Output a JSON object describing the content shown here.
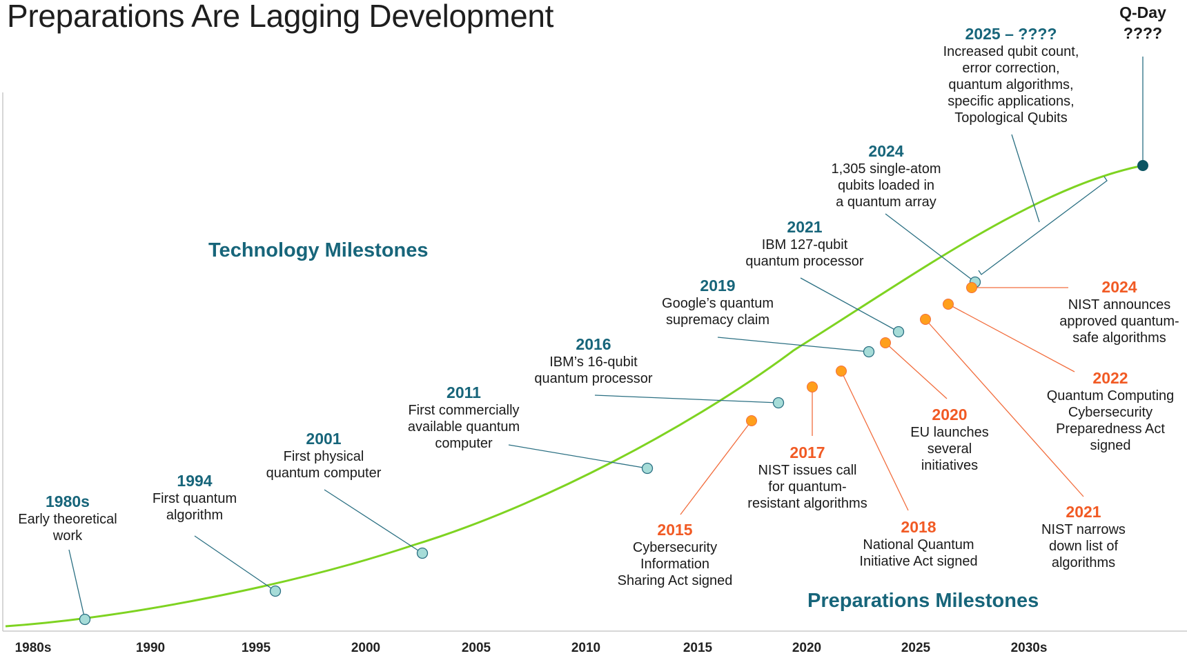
{
  "title": "Preparations Are Lagging Development",
  "colors": {
    "curve": "#7ed321",
    "tech": "#17657a",
    "prep": "#f15a24",
    "tech_marker": "#a6dcd8",
    "prep_marker": "#ff9f1c",
    "qday_marker": "#0b5563",
    "tech_leader": "#2a6f82",
    "prep_leader": "#f26d3d"
  },
  "chart_data": {
    "type": "line",
    "x_tick_labels": [
      "1980s",
      "1990",
      "1995",
      "2000",
      "2005",
      "2010",
      "2015",
      "2020",
      "2025",
      "2030s"
    ],
    "section_labels": {
      "technology": "Technology Milestones",
      "preparations": "Preparations Milestones"
    },
    "qday": {
      "label": "Q-Day",
      "year": "????"
    },
    "technology_milestones": [
      {
        "year": "1980s",
        "lines": [
          "Early theoretical",
          "work"
        ]
      },
      {
        "year": "1994",
        "lines": [
          "First quantum",
          "algorithm"
        ]
      },
      {
        "year": "2001",
        "lines": [
          "First physical",
          "quantum computer"
        ]
      },
      {
        "year": "2011",
        "lines": [
          "First commercially",
          "available quantum",
          "computer"
        ]
      },
      {
        "year": "2016",
        "lines": [
          "IBM’s 16-qubit",
          "quantum processor"
        ]
      },
      {
        "year": "2019",
        "lines": [
          "Google’s quantum",
          "supremacy claim"
        ]
      },
      {
        "year": "2021",
        "lines": [
          "IBM 127-qubit",
          "quantum processor"
        ]
      },
      {
        "year": "2024",
        "lines": [
          "1,305 single-atom",
          "qubits loaded in",
          "a quantum array"
        ]
      },
      {
        "year": "2025 – ????",
        "lines": [
          "Increased qubit count,",
          "error correction,",
          "quantum algorithms,",
          "specific applications,",
          "Topological Qubits"
        ]
      }
    ],
    "preparation_milestones": [
      {
        "year": "2015",
        "lines": [
          "Cybersecurity",
          "Information",
          "Sharing Act signed"
        ]
      },
      {
        "year": "2017",
        "lines": [
          "NIST issues call",
          "for quantum-",
          "resistant algorithms"
        ]
      },
      {
        "year": "2018",
        "lines": [
          "National Quantum",
          "Initiative Act signed"
        ]
      },
      {
        "year": "2020",
        "lines": [
          "EU launches",
          "several",
          "initiatives"
        ]
      },
      {
        "year": "2021",
        "lines": [
          "NIST narrows",
          "down list of",
          "algorithms"
        ]
      },
      {
        "year": "2022",
        "lines": [
          "Quantum Computing",
          "Cybersecurity",
          "Preparedness Act",
          "signed"
        ]
      },
      {
        "year": "2024",
        "lines": [
          "NIST announces",
          "approved quantum-",
          "safe algorithms"
        ]
      }
    ]
  }
}
